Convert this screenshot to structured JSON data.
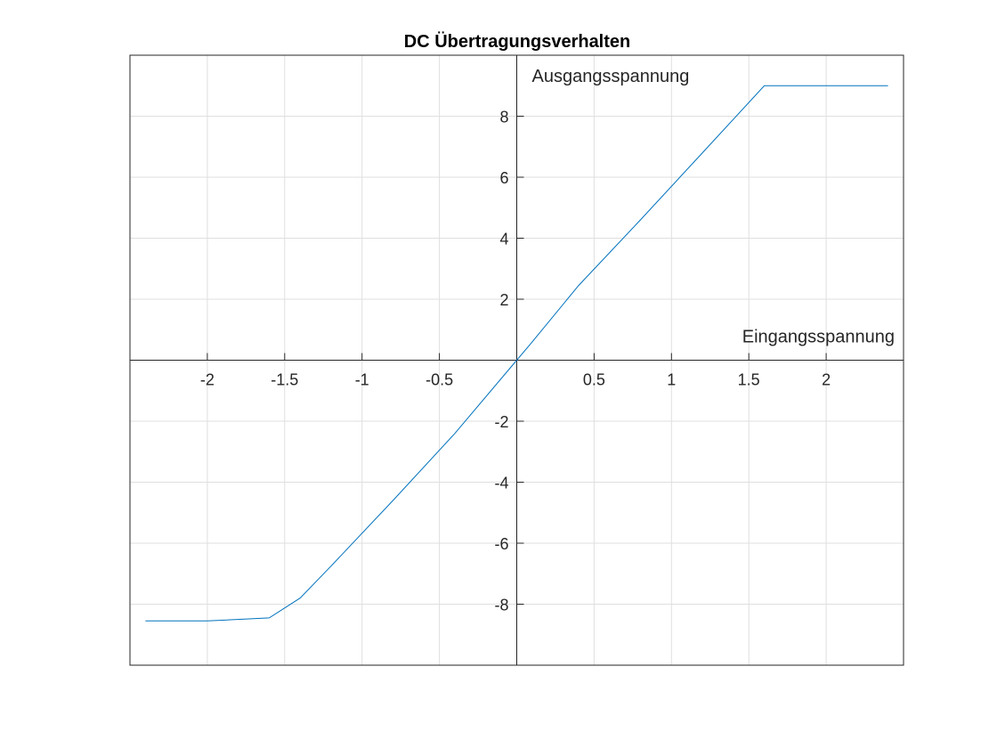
{
  "chart_data": {
    "type": "line",
    "title": "DC Übertragungsverhalten",
    "xlabel": "Eingangsspannung",
    "ylabel": "Ausgangsspannung",
    "xlim": [
      -2.5,
      2.5
    ],
    "ylim": [
      -10,
      10
    ],
    "grid": true,
    "axis_location": "origin",
    "x_ticks": [
      -2,
      -1.5,
      -1,
      -0.5,
      0.5,
      1,
      1.5,
      2
    ],
    "x_tick_labels": [
      "-2",
      "-1.5",
      "-1",
      "-0.5",
      "0.5",
      "1",
      "1.5",
      "2"
    ],
    "y_ticks": [
      -8,
      -6,
      -4,
      -2,
      2,
      4,
      6,
      8
    ],
    "y_tick_labels": [
      "-8",
      "-6",
      "-4",
      "-2",
      "2",
      "4",
      "6",
      "8"
    ],
    "series": [
      {
        "color": "#0072BD",
        "x": [
          -2.4,
          -2.0,
          -1.6,
          -1.4,
          -1.2,
          -0.8,
          -0.4,
          0.0,
          0.1,
          0.4,
          0.8,
          1.2,
          1.6,
          2.0,
          2.4
        ],
        "y": [
          -8.55,
          -8.55,
          -8.45,
          -7.8,
          -6.75,
          -4.6,
          -2.4,
          0.0,
          0.6,
          2.45,
          4.6,
          6.8,
          9.0,
          9.0,
          9.0
        ]
      }
    ]
  }
}
